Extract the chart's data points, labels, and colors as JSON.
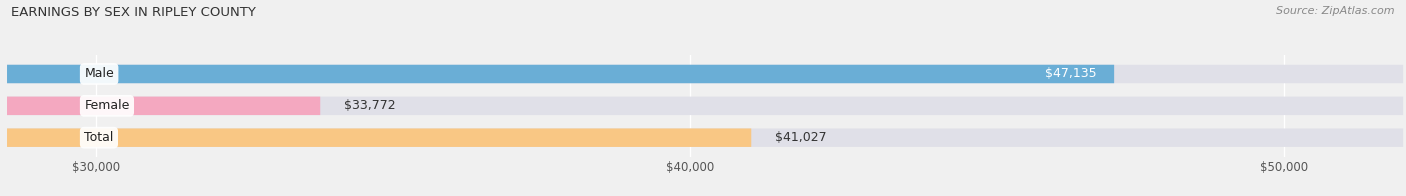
{
  "title": "EARNINGS BY SEX IN RIPLEY COUNTY",
  "source": "Source: ZipAtlas.com",
  "categories": [
    "Male",
    "Female",
    "Total"
  ],
  "values": [
    47135,
    33772,
    41027
  ],
  "bar_colors": [
    "#6aaed6",
    "#f4a8c0",
    "#f9c784"
  ],
  "x_min": 28500,
  "x_max": 52000,
  "x_ticks": [
    30000,
    40000,
    50000
  ],
  "x_tick_labels": [
    "$30,000",
    "$40,000",
    "$50,000"
  ],
  "bar_height": 0.58,
  "background_color": "#f0f0f0",
  "bar_bg_color": "#e0e0e8",
  "title_fontsize": 9.5,
  "label_fontsize": 9,
  "value_fontsize": 9,
  "tick_fontsize": 8.5
}
